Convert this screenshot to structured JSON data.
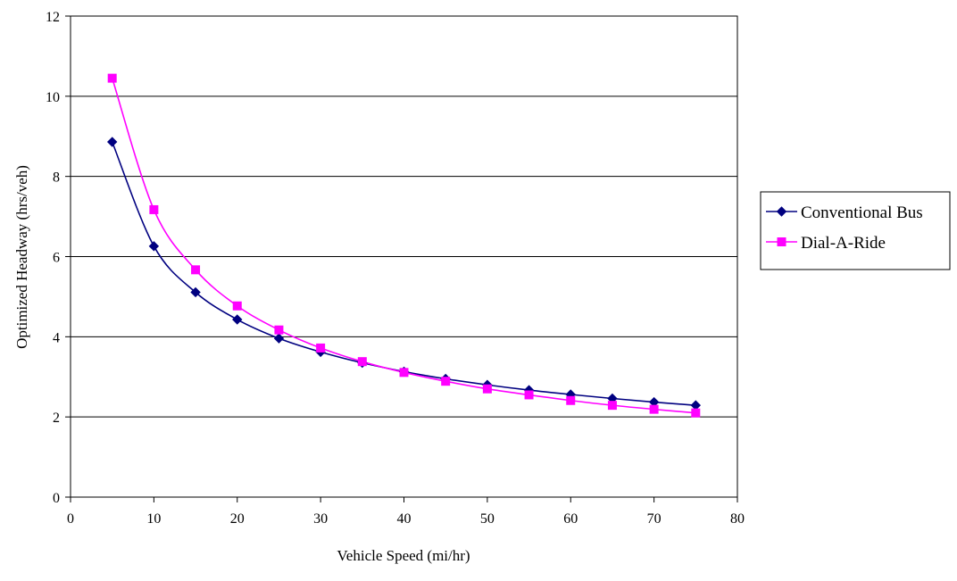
{
  "chart_data": {
    "type": "line",
    "title": "",
    "xlabel": "Vehicle Speed (mi/hr)",
    "ylabel": "Optimized Headway (hrs/veh)",
    "xlim": [
      0,
      80
    ],
    "ylim": [
      0,
      12
    ],
    "x_ticks": [
      "0",
      "10",
      "20",
      "30",
      "40",
      "50",
      "60",
      "70",
      "80"
    ],
    "y_ticks": [
      "0",
      "2",
      "4",
      "6",
      "8",
      "10",
      "12"
    ],
    "grid": "horizontal",
    "legend_position": "right",
    "x": [
      5,
      10,
      15,
      20,
      25,
      30,
      35,
      40,
      45,
      50,
      55,
      60,
      65,
      70,
      75
    ],
    "series": [
      {
        "name": "Conventional Bus",
        "color": "#000080",
        "marker": "diamond",
        "values": [
          8.86,
          6.26,
          5.11,
          4.43,
          3.96,
          3.62,
          3.35,
          3.13,
          2.95,
          2.8,
          2.67,
          2.56,
          2.46,
          2.37,
          2.29
        ]
      },
      {
        "name": "Dial-A-Ride",
        "color": "#ff00ff",
        "marker": "square",
        "values": [
          10.45,
          7.17,
          5.67,
          4.77,
          4.17,
          3.72,
          3.38,
          3.11,
          2.89,
          2.7,
          2.55,
          2.41,
          2.29,
          2.19,
          2.1
        ]
      }
    ]
  }
}
